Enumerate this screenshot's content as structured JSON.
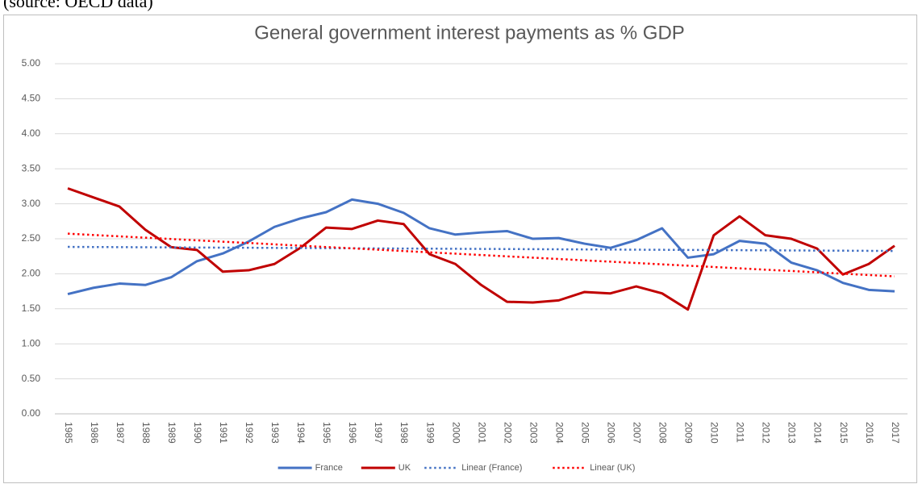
{
  "header": {
    "caption": "(source: OECD data)"
  },
  "chart_data": {
    "type": "line",
    "title": "General government interest payments as % GDP",
    "categories": [
      "1985",
      "1986",
      "1987",
      "1988",
      "1989",
      "1990",
      "1991",
      "1992",
      "1993",
      "1994",
      "1995",
      "1996",
      "1997",
      "1998",
      "1999",
      "2000",
      "2001",
      "2002",
      "2003",
      "2004",
      "2005",
      "2006",
      "2007",
      "2008",
      "2009",
      "2010",
      "2011",
      "2012",
      "2013",
      "2014",
      "2015",
      "2016",
      "2017"
    ],
    "series": [
      {
        "name": "France",
        "color": "#4472c4",
        "values": [
          1.71,
          1.8,
          1.86,
          1.84,
          1.95,
          2.18,
          2.29,
          2.46,
          2.67,
          2.79,
          2.88,
          3.06,
          3.0,
          2.87,
          2.65,
          2.56,
          2.59,
          2.61,
          2.5,
          2.51,
          2.43,
          2.37,
          2.48,
          2.65,
          2.23,
          2.28,
          2.47,
          2.43,
          2.16,
          2.05,
          1.87,
          1.77,
          1.75
        ]
      },
      {
        "name": "UK",
        "color": "#c00000",
        "values": [
          3.22,
          3.09,
          2.96,
          2.63,
          2.38,
          2.34,
          2.03,
          2.05,
          2.14,
          2.37,
          2.66,
          2.64,
          2.76,
          2.71,
          2.28,
          2.14,
          1.84,
          1.6,
          1.59,
          1.62,
          1.74,
          1.72,
          1.82,
          1.72,
          1.49,
          2.55,
          2.82,
          2.55,
          2.5,
          2.36,
          1.99,
          2.14,
          2.4
        ]
      }
    ],
    "trendlines": [
      {
        "name": "Linear (France)",
        "series": 0,
        "kind": "linear",
        "color": "#4472c4"
      },
      {
        "name": "Linear (UK)",
        "series": 1,
        "kind": "linear",
        "color": "#ff0000"
      }
    ],
    "ylim": [
      0,
      5
    ],
    "yticks": [
      {
        "value": 0,
        "label": "0.00"
      },
      {
        "value": 0.5,
        "label": "0.50"
      },
      {
        "value": 1,
        "label": "1.00"
      },
      {
        "value": 1.5,
        "label": "1.50"
      },
      {
        "value": 2,
        "label": "2.00"
      },
      {
        "value": 2.5,
        "label": "2.50"
      },
      {
        "value": 3,
        "label": "3.00"
      },
      {
        "value": 3.5,
        "label": "3.50"
      },
      {
        "value": 4,
        "label": "4.00"
      },
      {
        "value": 4.5,
        "label": "4.50"
      },
      {
        "value": 5,
        "label": "5.00"
      }
    ],
    "grid": true,
    "legend": "bottom"
  }
}
